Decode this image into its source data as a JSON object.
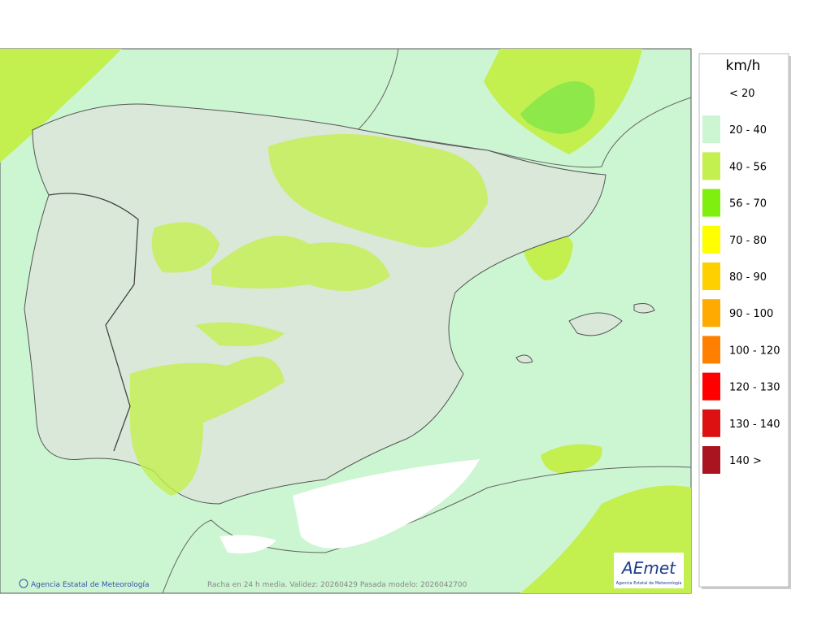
{
  "legend": {
    "unit": "km/h",
    "items": [
      {
        "label": "< 20",
        "color": "#ffffff"
      },
      {
        "label": "20 - 40",
        "color": "#ccf5d2"
      },
      {
        "label": "40 - 56",
        "color": "#c3ef4f"
      },
      {
        "label": "56 - 70",
        "color": "#7fef10"
      },
      {
        "label": "70 - 80",
        "color": "#ffff00"
      },
      {
        "label": "80 - 90",
        "color": "#ffd000"
      },
      {
        "label": "90 - 100",
        "color": "#ffaa00"
      },
      {
        "label": "100 - 120",
        "color": "#ff8000"
      },
      {
        "label": "120 - 130",
        "color": "#ff0000"
      },
      {
        "label": "130 - 140",
        "color": "#dd1111"
      },
      {
        "label": "140 >",
        "color": "#aa1420"
      }
    ]
  },
  "footer": {
    "copyright": "Agencia Estatal de Meteorología",
    "caption": "Racha en 24 h media. Validez: 20260429 Pasada modelo: 2026042700"
  },
  "logo": {
    "mark": "AEmet",
    "name": "Agencia Estatal de Meteorología"
  }
}
